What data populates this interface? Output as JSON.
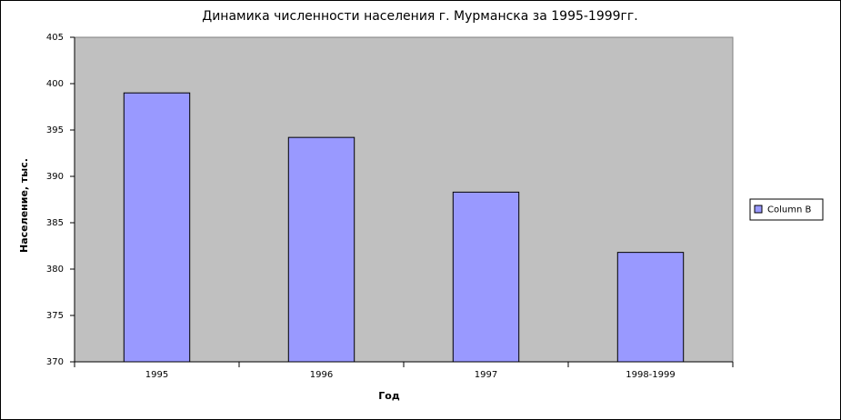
{
  "chart_data": {
    "type": "bar",
    "title": "Динамика численности населения г. Мурманска за 1995-1999гг.",
    "x_label": "Год",
    "y_label": "Население, тыс.",
    "categories": [
      "1995",
      "1996",
      "1997",
      "1998-1999"
    ],
    "series": [
      {
        "name": "Column B",
        "color": "#9999ff",
        "values": [
          399.0,
          394.2,
          388.3,
          381.8
        ]
      }
    ],
    "ylim": [
      370,
      405
    ],
    "yticks": [
      370,
      375,
      380,
      385,
      390,
      395,
      400,
      405
    ],
    "plot_background": "#c0c0c0",
    "legend": "right"
  }
}
